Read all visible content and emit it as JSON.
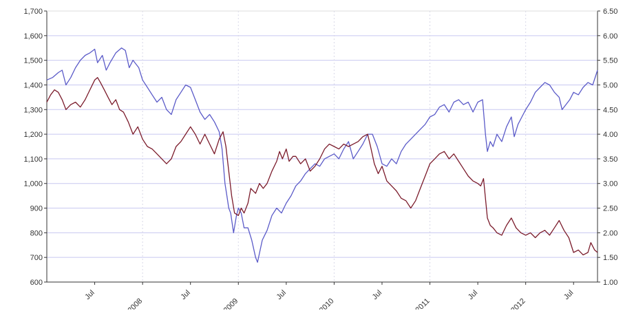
{
  "chart_data": {
    "type": "line",
    "title": "",
    "xlabel": "",
    "ylabel": "",
    "y_left": {
      "range": [
        600,
        1700
      ],
      "ticks": [
        "1,700",
        "1,600",
        "1,500",
        "1,400",
        "1,300",
        "1,200",
        "1,100",
        "1,000",
        "900",
        "800",
        "700",
        "600"
      ],
      "tick_values": [
        1700,
        1600,
        1500,
        1400,
        1300,
        1200,
        1100,
        1000,
        900,
        800,
        700,
        600
      ]
    },
    "y_right": {
      "range": [
        1.0,
        6.5
      ],
      "ticks": [
        "6.50",
        "6.00",
        "5.50",
        "5.00",
        "4.50",
        "4.00",
        "3.50",
        "3.00",
        "2.50",
        "2.00",
        "1.50",
        "1.00"
      ],
      "tick_values": [
        6.5,
        6.0,
        5.5,
        5.0,
        4.5,
        4.0,
        3.5,
        3.0,
        2.5,
        2.0,
        1.5,
        1.0
      ]
    },
    "x_range": [
      2007.0,
      2012.75
    ],
    "x_ticks": [
      {
        "label": "Jul",
        "value": 2007.5
      },
      {
        "label": "2008",
        "value": 2008.0
      },
      {
        "label": "Jul",
        "value": 2008.5
      },
      {
        "label": "2009",
        "value": 2009.0
      },
      {
        "label": "Jul",
        "value": 2009.5
      },
      {
        "label": "2010",
        "value": 2010.0
      },
      {
        "label": "Jul",
        "value": 2010.5
      },
      {
        "label": "2011",
        "value": 2011.0
      },
      {
        "label": "Jul",
        "value": 2011.5
      },
      {
        "label": "2012",
        "value": 2012.0
      },
      {
        "label": "Jul",
        "value": 2012.5
      }
    ],
    "grid": true,
    "series": [
      {
        "color": "#5a5ac8",
        "axis": "left",
        "points": [
          [
            2007.0,
            1420
          ],
          [
            2007.06,
            1430
          ],
          [
            2007.12,
            1450
          ],
          [
            2007.16,
            1460
          ],
          [
            2007.2,
            1400
          ],
          [
            2007.25,
            1430
          ],
          [
            2007.3,
            1470
          ],
          [
            2007.35,
            1500
          ],
          [
            2007.4,
            1520
          ],
          [
            2007.45,
            1530
          ],
          [
            2007.5,
            1545
          ],
          [
            2007.53,
            1490
          ],
          [
            2007.58,
            1520
          ],
          [
            2007.62,
            1460
          ],
          [
            2007.66,
            1490
          ],
          [
            2007.72,
            1530
          ],
          [
            2007.78,
            1550
          ],
          [
            2007.82,
            1540
          ],
          [
            2007.86,
            1470
          ],
          [
            2007.9,
            1500
          ],
          [
            2007.96,
            1470
          ],
          [
            2008.0,
            1420
          ],
          [
            2008.05,
            1390
          ],
          [
            2008.1,
            1360
          ],
          [
            2008.15,
            1330
          ],
          [
            2008.2,
            1350
          ],
          [
            2008.25,
            1300
          ],
          [
            2008.3,
            1280
          ],
          [
            2008.35,
            1340
          ],
          [
            2008.4,
            1370
          ],
          [
            2008.45,
            1400
          ],
          [
            2008.5,
            1390
          ],
          [
            2008.55,
            1340
          ],
          [
            2008.6,
            1290
          ],
          [
            2008.65,
            1260
          ],
          [
            2008.7,
            1280
          ],
          [
            2008.75,
            1250
          ],
          [
            2008.8,
            1210
          ],
          [
            2008.83,
            1140
          ],
          [
            2008.86,
            1000
          ],
          [
            2008.88,
            950
          ],
          [
            2008.9,
            900
          ],
          [
            2008.92,
            880
          ],
          [
            2008.95,
            800
          ],
          [
            2008.98,
            870
          ],
          [
            2009.0,
            900
          ],
          [
            2009.03,
            880
          ],
          [
            2009.06,
            820
          ],
          [
            2009.1,
            820
          ],
          [
            2009.14,
            770
          ],
          [
            2009.18,
            700
          ],
          [
            2009.2,
            680
          ],
          [
            2009.25,
            770
          ],
          [
            2009.3,
            810
          ],
          [
            2009.35,
            870
          ],
          [
            2009.4,
            900
          ],
          [
            2009.45,
            880
          ],
          [
            2009.5,
            920
          ],
          [
            2009.55,
            950
          ],
          [
            2009.6,
            990
          ],
          [
            2009.65,
            1010
          ],
          [
            2009.7,
            1040
          ],
          [
            2009.75,
            1060
          ],
          [
            2009.8,
            1080
          ],
          [
            2009.85,
            1070
          ],
          [
            2009.9,
            1100
          ],
          [
            2009.95,
            1110
          ],
          [
            2010.0,
            1120
          ],
          [
            2010.05,
            1100
          ],
          [
            2010.1,
            1140
          ],
          [
            2010.15,
            1170
          ],
          [
            2010.2,
            1100
          ],
          [
            2010.25,
            1130
          ],
          [
            2010.3,
            1160
          ],
          [
            2010.35,
            1200
          ],
          [
            2010.4,
            1200
          ],
          [
            2010.45,
            1150
          ],
          [
            2010.5,
            1080
          ],
          [
            2010.55,
            1070
          ],
          [
            2010.6,
            1100
          ],
          [
            2010.65,
            1080
          ],
          [
            2010.7,
            1130
          ],
          [
            2010.75,
            1160
          ],
          [
            2010.8,
            1180
          ],
          [
            2010.85,
            1200
          ],
          [
            2010.9,
            1220
          ],
          [
            2010.95,
            1240
          ],
          [
            2011.0,
            1270
          ],
          [
            2011.05,
            1280
          ],
          [
            2011.1,
            1310
          ],
          [
            2011.15,
            1320
          ],
          [
            2011.2,
            1290
          ],
          [
            2011.25,
            1330
          ],
          [
            2011.3,
            1340
          ],
          [
            2011.35,
            1320
          ],
          [
            2011.4,
            1330
          ],
          [
            2011.45,
            1290
          ],
          [
            2011.5,
            1330
          ],
          [
            2011.55,
            1340
          ],
          [
            2011.58,
            1200
          ],
          [
            2011.6,
            1130
          ],
          [
            2011.63,
            1170
          ],
          [
            2011.66,
            1150
          ],
          [
            2011.7,
            1200
          ],
          [
            2011.75,
            1170
          ],
          [
            2011.8,
            1230
          ],
          [
            2011.85,
            1270
          ],
          [
            2011.88,
            1190
          ],
          [
            2011.92,
            1240
          ],
          [
            2011.96,
            1270
          ],
          [
            2012.0,
            1300
          ],
          [
            2012.05,
            1330
          ],
          [
            2012.1,
            1370
          ],
          [
            2012.15,
            1390
          ],
          [
            2012.2,
            1410
          ],
          [
            2012.25,
            1400
          ],
          [
            2012.3,
            1370
          ],
          [
            2012.35,
            1350
          ],
          [
            2012.38,
            1300
          ],
          [
            2012.42,
            1320
          ],
          [
            2012.46,
            1340
          ],
          [
            2012.5,
            1370
          ],
          [
            2012.55,
            1360
          ],
          [
            2012.6,
            1390
          ],
          [
            2012.65,
            1410
          ],
          [
            2012.7,
            1400
          ],
          [
            2012.75,
            1460
          ]
        ]
      },
      {
        "color": "#7a1a2a",
        "axis": "left",
        "points": [
          [
            2007.0,
            1330
          ],
          [
            2007.04,
            1360
          ],
          [
            2007.08,
            1380
          ],
          [
            2007.12,
            1370
          ],
          [
            2007.16,
            1340
          ],
          [
            2007.2,
            1300
          ],
          [
            2007.25,
            1320
          ],
          [
            2007.3,
            1330
          ],
          [
            2007.35,
            1310
          ],
          [
            2007.4,
            1340
          ],
          [
            2007.45,
            1380
          ],
          [
            2007.5,
            1420
          ],
          [
            2007.53,
            1430
          ],
          [
            2007.56,
            1410
          ],
          [
            2007.6,
            1380
          ],
          [
            2007.64,
            1350
          ],
          [
            2007.68,
            1320
          ],
          [
            2007.72,
            1340
          ],
          [
            2007.76,
            1300
          ],
          [
            2007.8,
            1290
          ],
          [
            2007.85,
            1250
          ],
          [
            2007.9,
            1200
          ],
          [
            2007.95,
            1230
          ],
          [
            2008.0,
            1180
          ],
          [
            2008.05,
            1150
          ],
          [
            2008.1,
            1140
          ],
          [
            2008.15,
            1120
          ],
          [
            2008.2,
            1100
          ],
          [
            2008.25,
            1080
          ],
          [
            2008.3,
            1100
          ],
          [
            2008.35,
            1150
          ],
          [
            2008.4,
            1170
          ],
          [
            2008.45,
            1200
          ],
          [
            2008.5,
            1230
          ],
          [
            2008.55,
            1200
          ],
          [
            2008.6,
            1160
          ],
          [
            2008.65,
            1200
          ],
          [
            2008.7,
            1160
          ],
          [
            2008.75,
            1120
          ],
          [
            2008.8,
            1180
          ],
          [
            2008.84,
            1210
          ],
          [
            2008.87,
            1150
          ],
          [
            2008.9,
            1050
          ],
          [
            2008.93,
            950
          ],
          [
            2008.96,
            880
          ],
          [
            2009.0,
            870
          ],
          [
            2009.03,
            900
          ],
          [
            2009.06,
            880
          ],
          [
            2009.1,
            920
          ],
          [
            2009.13,
            980
          ],
          [
            2009.18,
            960
          ],
          [
            2009.22,
            1000
          ],
          [
            2009.26,
            980
          ],
          [
            2009.3,
            1000
          ],
          [
            2009.35,
            1050
          ],
          [
            2009.4,
            1090
          ],
          [
            2009.43,
            1130
          ],
          [
            2009.46,
            1100
          ],
          [
            2009.5,
            1140
          ],
          [
            2009.53,
            1090
          ],
          [
            2009.57,
            1110
          ],
          [
            2009.6,
            1110
          ],
          [
            2009.65,
            1080
          ],
          [
            2009.7,
            1100
          ],
          [
            2009.75,
            1050
          ],
          [
            2009.8,
            1070
          ],
          [
            2009.85,
            1100
          ],
          [
            2009.9,
            1140
          ],
          [
            2009.95,
            1160
          ],
          [
            2010.0,
            1150
          ],
          [
            2010.05,
            1140
          ],
          [
            2010.1,
            1160
          ],
          [
            2010.15,
            1150
          ],
          [
            2010.2,
            1160
          ],
          [
            2010.25,
            1170
          ],
          [
            2010.3,
            1190
          ],
          [
            2010.35,
            1200
          ],
          [
            2010.38,
            1150
          ],
          [
            2010.42,
            1080
          ],
          [
            2010.46,
            1040
          ],
          [
            2010.5,
            1070
          ],
          [
            2010.55,
            1010
          ],
          [
            2010.6,
            990
          ],
          [
            2010.65,
            970
          ],
          [
            2010.7,
            940
          ],
          [
            2010.75,
            930
          ],
          [
            2010.8,
            900
          ],
          [
            2010.85,
            930
          ],
          [
            2010.9,
            980
          ],
          [
            2010.95,
            1030
          ],
          [
            2011.0,
            1080
          ],
          [
            2011.05,
            1100
          ],
          [
            2011.1,
            1120
          ],
          [
            2011.15,
            1130
          ],
          [
            2011.2,
            1100
          ],
          [
            2011.25,
            1120
          ],
          [
            2011.3,
            1090
          ],
          [
            2011.35,
            1060
          ],
          [
            2011.4,
            1030
          ],
          [
            2011.45,
            1010
          ],
          [
            2011.5,
            1000
          ],
          [
            2011.53,
            990
          ],
          [
            2011.56,
            1020
          ],
          [
            2011.58,
            940
          ],
          [
            2011.6,
            860
          ],
          [
            2011.63,
            830
          ],
          [
            2011.66,
            820
          ],
          [
            2011.7,
            800
          ],
          [
            2011.75,
            790
          ],
          [
            2011.8,
            830
          ],
          [
            2011.85,
            860
          ],
          [
            2011.9,
            820
          ],
          [
            2011.95,
            800
          ],
          [
            2012.0,
            790
          ],
          [
            2012.05,
            800
          ],
          [
            2012.1,
            780
          ],
          [
            2012.15,
            800
          ],
          [
            2012.2,
            810
          ],
          [
            2012.25,
            790
          ],
          [
            2012.3,
            820
          ],
          [
            2012.35,
            850
          ],
          [
            2012.4,
            810
          ],
          [
            2012.45,
            780
          ],
          [
            2012.5,
            720
          ],
          [
            2012.55,
            730
          ],
          [
            2012.6,
            710
          ],
          [
            2012.65,
            720
          ],
          [
            2012.68,
            760
          ],
          [
            2012.72,
            730
          ],
          [
            2012.75,
            720
          ]
        ]
      }
    ]
  }
}
